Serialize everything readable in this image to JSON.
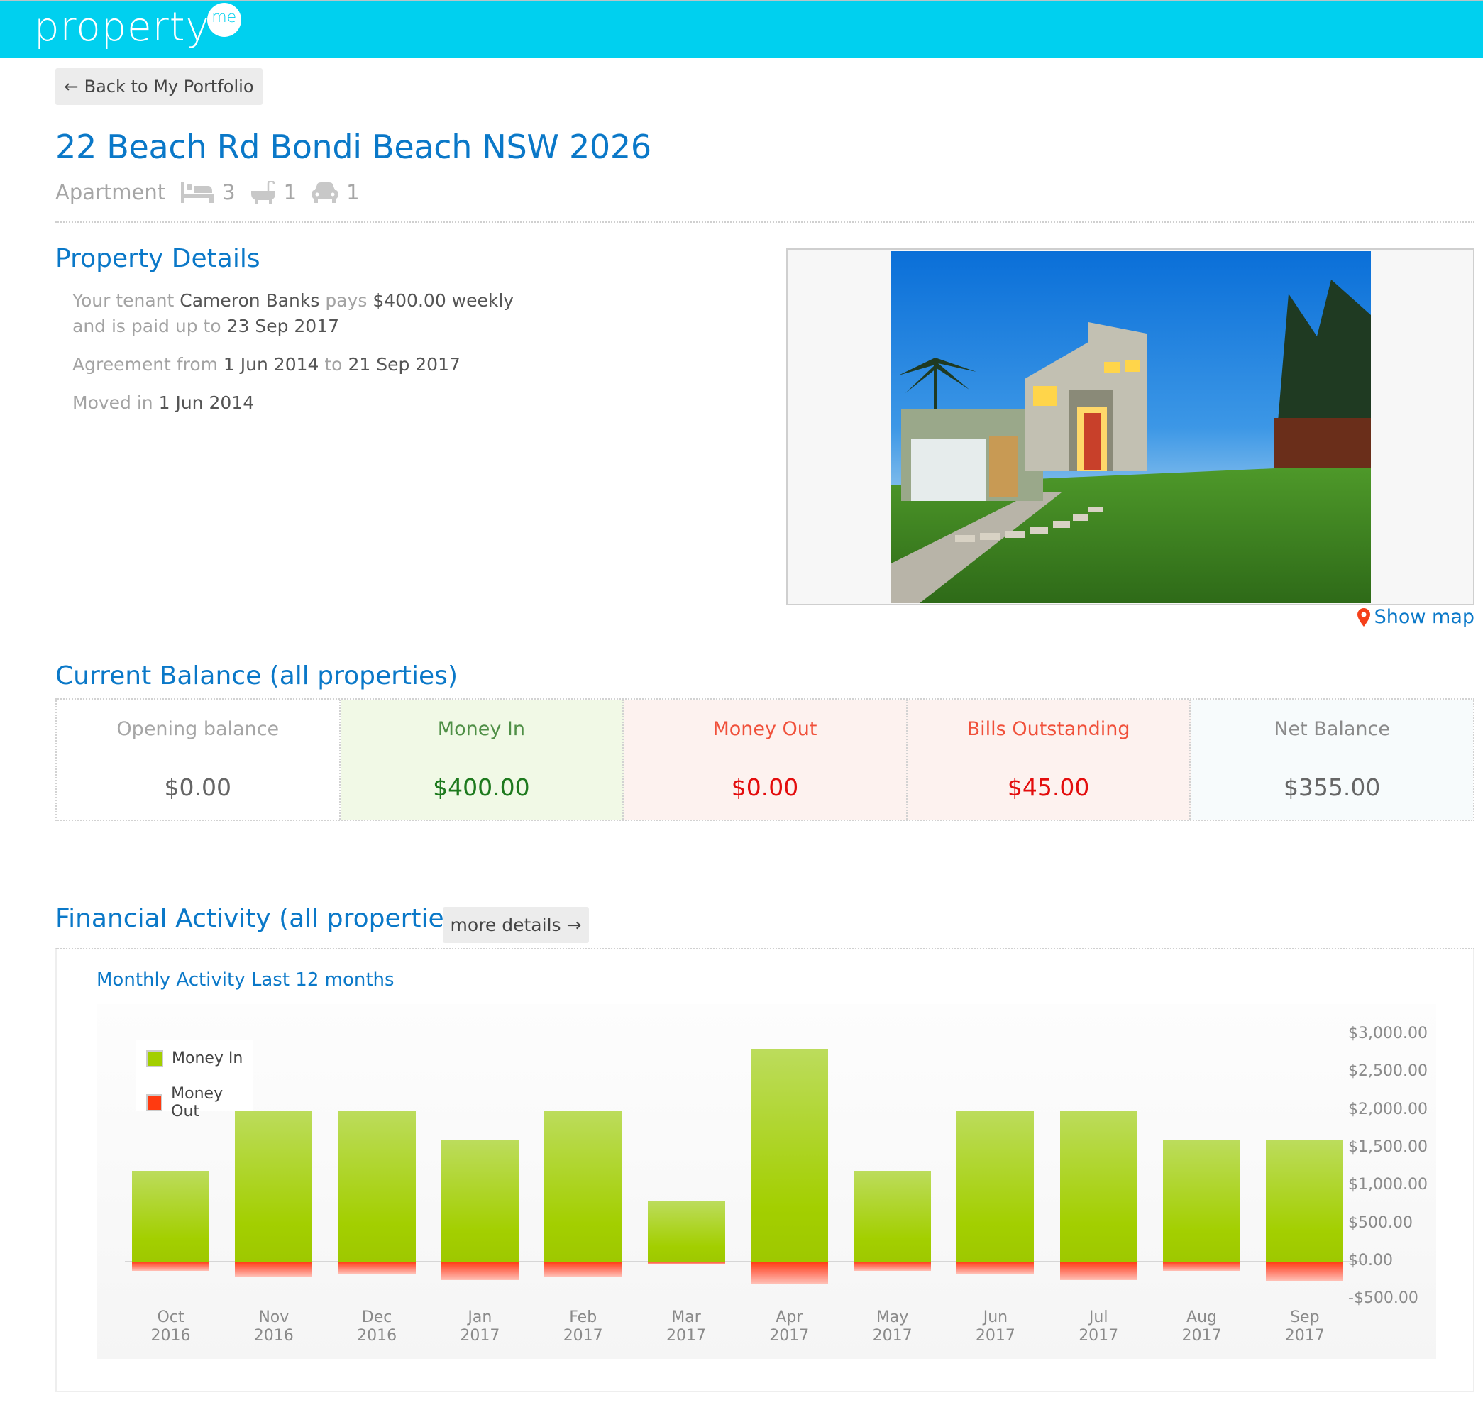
{
  "header": {
    "logo_text": "property",
    "logo_badge": "me",
    "brand_color": "#00d0ef"
  },
  "nav": {
    "back_arrow": "←",
    "back_label": "Back to My Portfolio"
  },
  "property": {
    "address": "22 Beach Rd Bondi Beach NSW 2026",
    "type": "Apartment",
    "bedrooms": "3",
    "bathrooms": "1",
    "car_spaces": "1",
    "icons": [
      "bed-icon",
      "bath-icon",
      "car-icon"
    ]
  },
  "details": {
    "heading": "Property Details",
    "tenant_prefix": "Your tenant",
    "tenant_name": "Cameron Banks",
    "pays_label": "pays",
    "rent": "$400.00 weekly",
    "paid_prefix": "and is paid up to",
    "paid_to": "23 Sep 2017",
    "agreement_prefix": "Agreement from",
    "agreement_from": "1 Jun 2014",
    "agreement_to_label": "to",
    "agreement_to": "21 Sep 2017",
    "moved_prefix": "Moved in",
    "moved_in": "1 Jun 2014"
  },
  "photo": {
    "alt": "House exterior at dusk",
    "show_map_label": "Show map",
    "show_map_icon": "map-pin-icon"
  },
  "balance": {
    "heading": "Current Balance (all properties)",
    "cards": [
      {
        "label": "Opening balance",
        "value": "$0.00",
        "bg": "#ffffff",
        "label_color": "#a6a6a6",
        "value_color": "#666666"
      },
      {
        "label": "Money In",
        "value": "$400.00",
        "bg": "#f1f9e6",
        "label_color": "#4f8f46",
        "value_color": "#1e7a1e"
      },
      {
        "label": "Money Out",
        "value": "$0.00",
        "bg": "#fdf2ef",
        "label_color": "#f0503a",
        "value_color": "#e30d0d"
      },
      {
        "label": "Bills Outstanding",
        "value": "$45.00",
        "bg": "#fdf2ef",
        "label_color": "#f0503a",
        "value_color": "#e30d0d"
      },
      {
        "label": "Net Balance",
        "value": "$355.00",
        "bg": "#f7fbfc",
        "label_color": "#8a8a8a",
        "value_color": "#666666"
      }
    ]
  },
  "activity": {
    "heading": "Financial Activity (all properties)",
    "more_details_label": "more details →",
    "chart_title": "Monthly Activity Last 12 months"
  },
  "chart_data": {
    "type": "bar",
    "title": "Monthly Activity Last 12 months",
    "xlabel": "",
    "ylabel": "",
    "categories": [
      "Oct 2016",
      "Nov 2016",
      "Dec 2016",
      "Jan 2017",
      "Feb 2017",
      "Mar 2017",
      "Apr 2017",
      "May 2017",
      "Jun 2017",
      "Jul 2017",
      "Aug 2017",
      "Sep 2017"
    ],
    "x_labels": [
      [
        "Oct",
        "2016"
      ],
      [
        "Nov",
        "2016"
      ],
      [
        "Dec",
        "2016"
      ],
      [
        "Jan",
        "2017"
      ],
      [
        "Feb",
        "2017"
      ],
      [
        "Mar",
        "2017"
      ],
      [
        "Apr",
        "2017"
      ],
      [
        "May",
        "2017"
      ],
      [
        "Jun",
        "2017"
      ],
      [
        "Jul",
        "2017"
      ],
      [
        "Aug",
        "2017"
      ],
      [
        "Sep",
        "2017"
      ]
    ],
    "series": [
      {
        "name": "Money In",
        "color": "#a3cf00",
        "values": [
          1200,
          2000,
          2000,
          1600,
          2000,
          800,
          2800,
          1200,
          2000,
          2000,
          1600,
          1600
        ]
      },
      {
        "name": "Money Out",
        "color": "#ff3a10",
        "values": [
          -120,
          -200,
          -160,
          -240,
          -200,
          -40,
          -290,
          -120,
          -160,
          -240,
          -120,
          -250
        ]
      }
    ],
    "ylim": [
      -500,
      3000
    ],
    "yticks": [
      3000,
      2500,
      2000,
      1500,
      1000,
      500,
      0,
      -500
    ],
    "ytick_labels": [
      "$3,000.00",
      "$2,500.00",
      "$2,000.00",
      "$1,500.00",
      "$1,000.00",
      "$500.00",
      "$0.00",
      "-$500.00"
    ],
    "y_axis_position": "right",
    "legend_position": "top-left",
    "grid": false,
    "stacked": false
  }
}
